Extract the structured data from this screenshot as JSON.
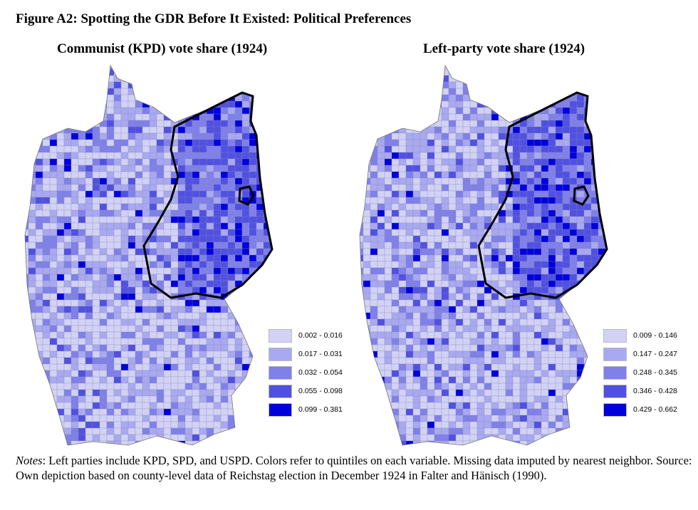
{
  "title": "Figure A2: Spotting the GDR Before It Existed: Political Preferences",
  "panels": [
    {
      "title": "Communist (KPD) vote share (1924)",
      "legend": [
        "0.002 - 0.016",
        "0.017 - 0.031",
        "0.032 - 0.054",
        "0.055 - 0.098",
        "0.099 - 0.381"
      ]
    },
    {
      "title": "Left-party vote share (1924)",
      "legend": [
        "0.009 - 0.146",
        "0.147 - 0.247",
        "0.248 - 0.345",
        "0.346 - 0.428",
        "0.429 - 0.662"
      ]
    }
  ],
  "legend_colors": [
    "#d2d2f7",
    "#a9a9f1",
    "#8080ea",
    "#5050e2",
    "#0000dc"
  ],
  "notes": {
    "label": "Notes",
    "text": ": Left parties include KPD, SPD, and USPD. Colors refer to quintiles on each variable. Missing data imputed by nearest neighbor. Source: Own depiction based on county-level data of Reichstag election in December 1924 in Falter and Hänisch (1990)."
  }
}
